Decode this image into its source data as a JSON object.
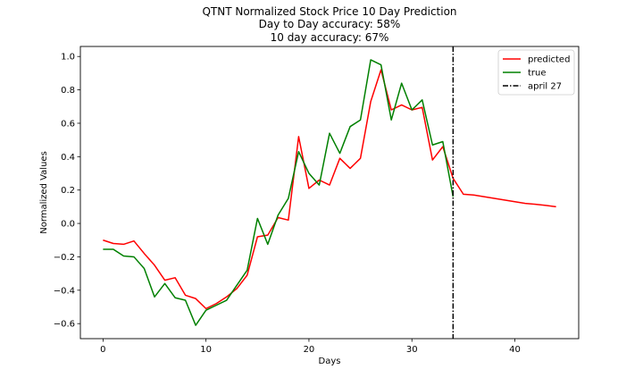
{
  "chart_data": {
    "type": "line",
    "title_lines": [
      "QTNT Normalized Stock Price 10 Day Prediction",
      "Day to Day accuracy: 58%",
      "10 day accuracy: 67%"
    ],
    "xlabel": "Days",
    "ylabel": "Normalized Values",
    "xlim": [
      -2.2,
      46.2
    ],
    "ylim": [
      -0.69,
      1.06
    ],
    "xticks": [
      0,
      10,
      20,
      30,
      40
    ],
    "yticks": [
      -0.6,
      -0.4,
      -0.2,
      0.0,
      0.2,
      0.4,
      0.6,
      0.8,
      1.0
    ],
    "ytick_labels": [
      "−0.6",
      "−0.4",
      "−0.2",
      "0.0",
      "0.2",
      "0.4",
      "0.6",
      "0.8",
      "1.0"
    ],
    "grid": false,
    "legend_position": "top-right",
    "series": [
      {
        "name": "predicted",
        "color": "#ff0000",
        "x": [
          0,
          1,
          2,
          3,
          4,
          5,
          6,
          7,
          8,
          9,
          10,
          11,
          12,
          13,
          14,
          15,
          16,
          17,
          18,
          19,
          20,
          21,
          22,
          23,
          24,
          25,
          26,
          27,
          28,
          29,
          30,
          31,
          32,
          33,
          34,
          35,
          36,
          37,
          38,
          39,
          40,
          41,
          42,
          43,
          44
        ],
        "y": [
          -0.1,
          -0.12,
          -0.125,
          -0.105,
          -0.18,
          -0.25,
          -0.34,
          -0.325,
          -0.43,
          -0.45,
          -0.51,
          -0.48,
          -0.44,
          -0.39,
          -0.31,
          -0.08,
          -0.07,
          0.035,
          0.02,
          0.52,
          0.21,
          0.26,
          0.23,
          0.39,
          0.33,
          0.39,
          0.73,
          0.92,
          0.68,
          0.71,
          0.68,
          0.695,
          0.38,
          0.46,
          0.27,
          0.175,
          0.17,
          0.16,
          0.15,
          0.14,
          0.13,
          0.12,
          0.115,
          0.108,
          0.1
        ]
      },
      {
        "name": "true",
        "color": "#008000",
        "x": [
          0,
          1,
          2,
          3,
          4,
          5,
          6,
          7,
          8,
          9,
          10,
          11,
          12,
          13,
          14,
          15,
          16,
          17,
          18,
          19,
          20,
          21,
          22,
          23,
          24,
          25,
          26,
          27,
          28,
          29,
          30,
          31,
          32,
          33,
          34
        ],
        "y": [
          -0.155,
          -0.155,
          -0.195,
          -0.2,
          -0.27,
          -0.44,
          -0.36,
          -0.445,
          -0.46,
          -0.61,
          -0.52,
          -0.49,
          -0.46,
          -0.37,
          -0.28,
          0.03,
          -0.125,
          0.05,
          0.15,
          0.43,
          0.3,
          0.23,
          0.54,
          0.42,
          0.58,
          0.62,
          0.98,
          0.95,
          0.62,
          0.84,
          0.68,
          0.74,
          0.47,
          0.49,
          0.16
        ]
      },
      {
        "name": "april 27",
        "color": "#000000",
        "style": "dashdot",
        "vline_x": 34
      }
    ]
  }
}
